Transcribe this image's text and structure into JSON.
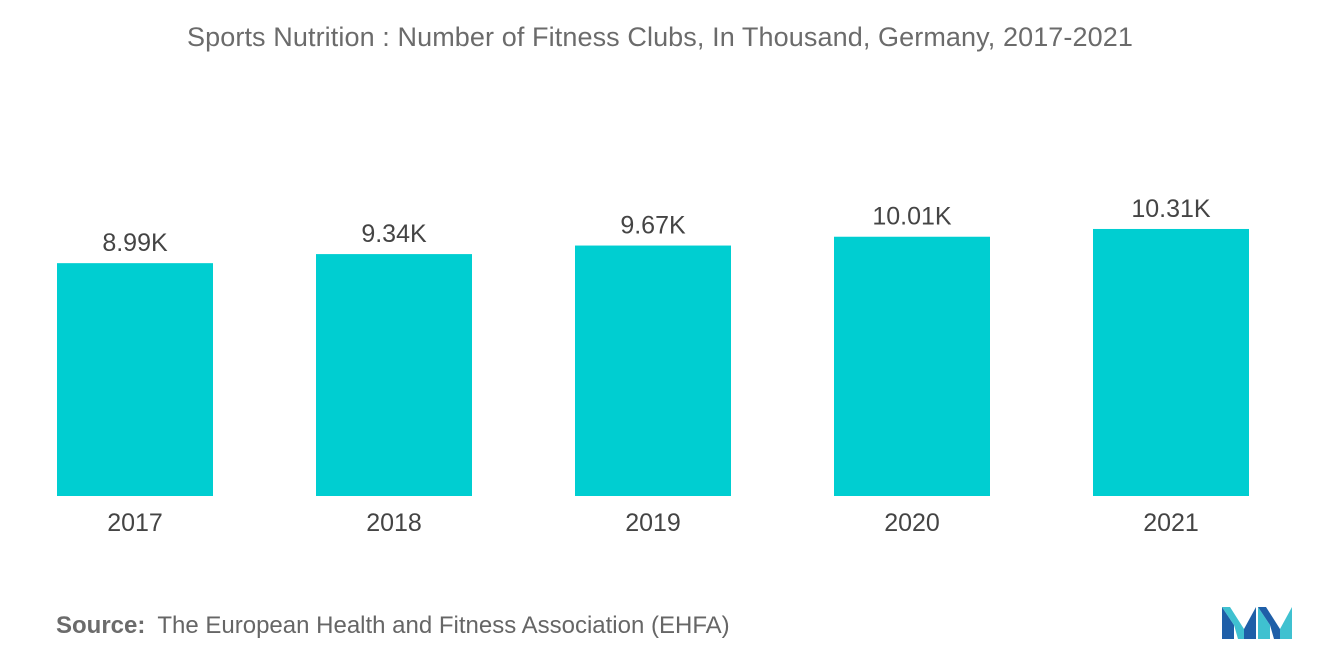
{
  "colors": {
    "bar": "#00CED1",
    "text": "#555555",
    "title": "#6b6b6b",
    "logo_dark": "#1f5fa8",
    "logo_light": "#3fc1d0"
  },
  "chart_data": {
    "type": "bar",
    "title": "Sports Nutrition : Number of Fitness Clubs, In Thousand, Germany, 2017-2021",
    "xlabel": "",
    "ylabel": "",
    "categories": [
      "2017",
      "2018",
      "2019",
      "2020",
      "2021"
    ],
    "values": [
      8.99,
      9.34,
      9.67,
      10.01,
      10.31
    ],
    "data_labels": [
      "8.99K",
      "9.34K",
      "9.67K",
      "10.01K",
      "10.31K"
    ],
    "grid": false,
    "legend": "none"
  },
  "source": {
    "label": "Source:",
    "text": "The European Health and Fitness Association (EHFA)"
  },
  "logo": {
    "icon": "mordor-logo-icon"
  }
}
